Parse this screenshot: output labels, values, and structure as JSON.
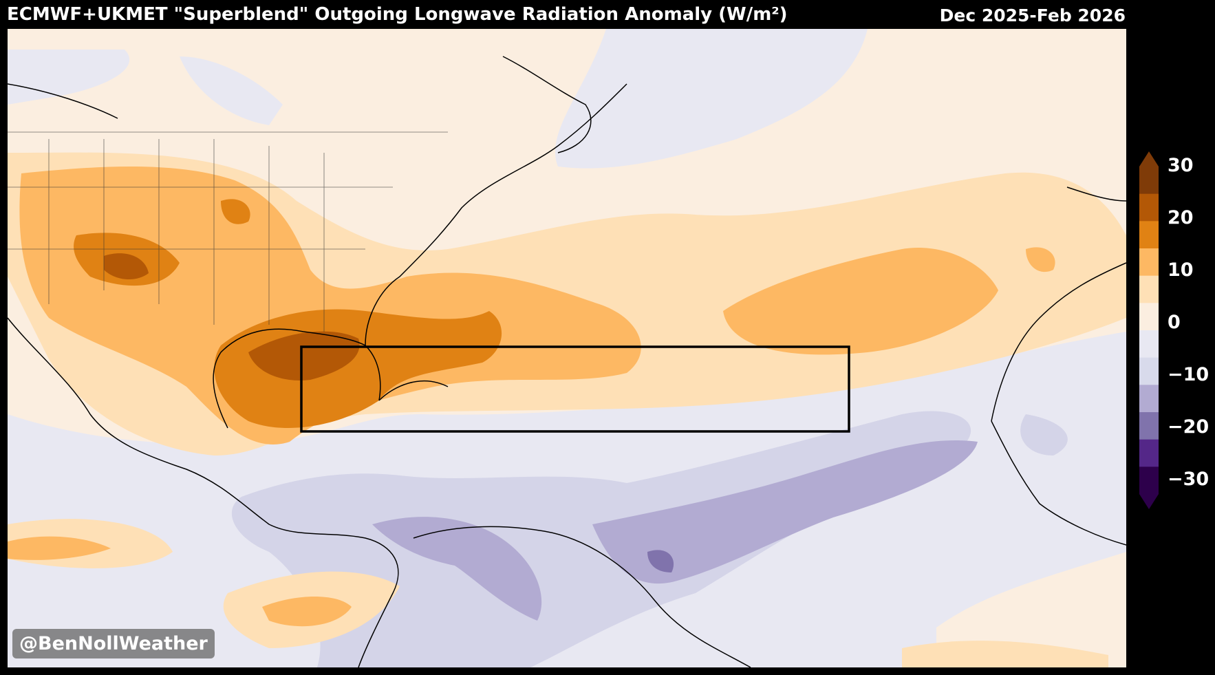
{
  "header": {
    "title": "ECMWF+UKMET \"Superblend\" Outgoing Longwave Radiation Anomaly (W/m²)",
    "period": "Dec 2025-Feb 2026"
  },
  "watermark": "@BenNollWeather",
  "colorbar": {
    "labels": [
      "30",
      "20",
      "10",
      "0",
      "−10",
      "−20",
      "−30"
    ],
    "colors": [
      "#7f3b08",
      "#b35806",
      "#e08214",
      "#fdb863",
      "#fee0b6",
      "#fbeee0",
      "#e8e8f2",
      "#d8daeb",
      "#b2abd2",
      "#8073ac",
      "#542788",
      "#2d004b"
    ]
  },
  "map": {
    "region": "Western North Atlantic, Caribbean, Gulf of Mexico, northern South America",
    "highlight_box": "MDR box"
  }
}
